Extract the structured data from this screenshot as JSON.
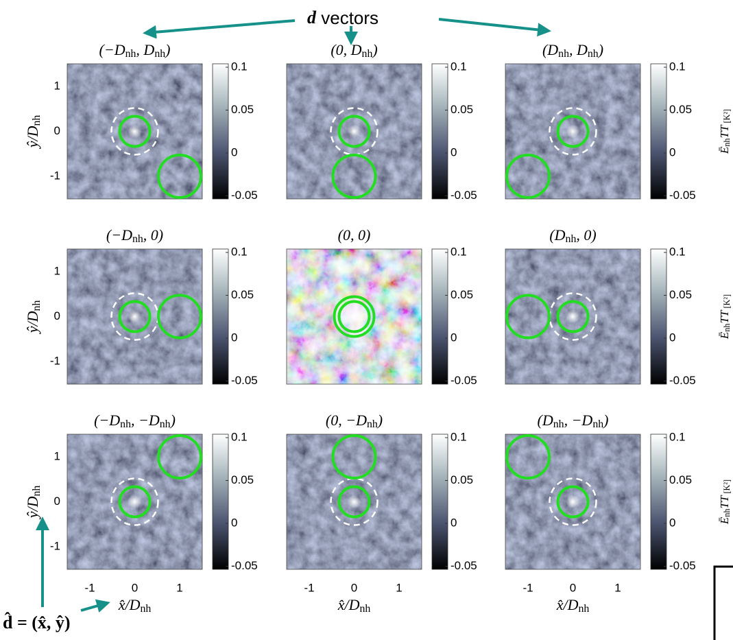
{
  "annotation": {
    "bold": "d",
    "label": "vectors"
  },
  "panels": [
    {
      "title": [
        "(−D",
        "nh",
        ", D",
        "nh",
        ")"
      ]
    },
    {
      "title": [
        "(0, D",
        "nh",
        ")"
      ]
    },
    {
      "title": [
        "(D",
        "nh",
        ", D",
        "nh",
        ")"
      ]
    },
    {
      "title": [
        "(−D",
        "nh",
        ", 0)"
      ]
    },
    {
      "title": [
        "(0, 0)"
      ]
    },
    {
      "title": [
        "(D",
        "nh",
        ", 0)"
      ]
    },
    {
      "title": [
        "(−D",
        "nh",
        ", −D",
        "nh",
        ")"
      ]
    },
    {
      "title": [
        "(0, −D",
        "nh",
        ")"
      ]
    },
    {
      "title": [
        "(D",
        "nh",
        ", −D",
        "nh",
        ")"
      ]
    }
  ],
  "colorbar_ticks": [
    "0.1",
    "0.05",
    "0",
    "-0.05"
  ],
  "colorbar_label": [
    "Ē",
    "nh",
    "TT",
    " [K²]"
  ],
  "y_ticks": [
    "1",
    "0",
    "-1"
  ],
  "x_ticks": [
    "-1",
    "0",
    "1"
  ],
  "y_label": [
    "ŷ/D",
    "nh"
  ],
  "x_label": [
    "x̂/D",
    "nh"
  ],
  "d_hat": "d̂ = (x̂, ŷ)"
}
